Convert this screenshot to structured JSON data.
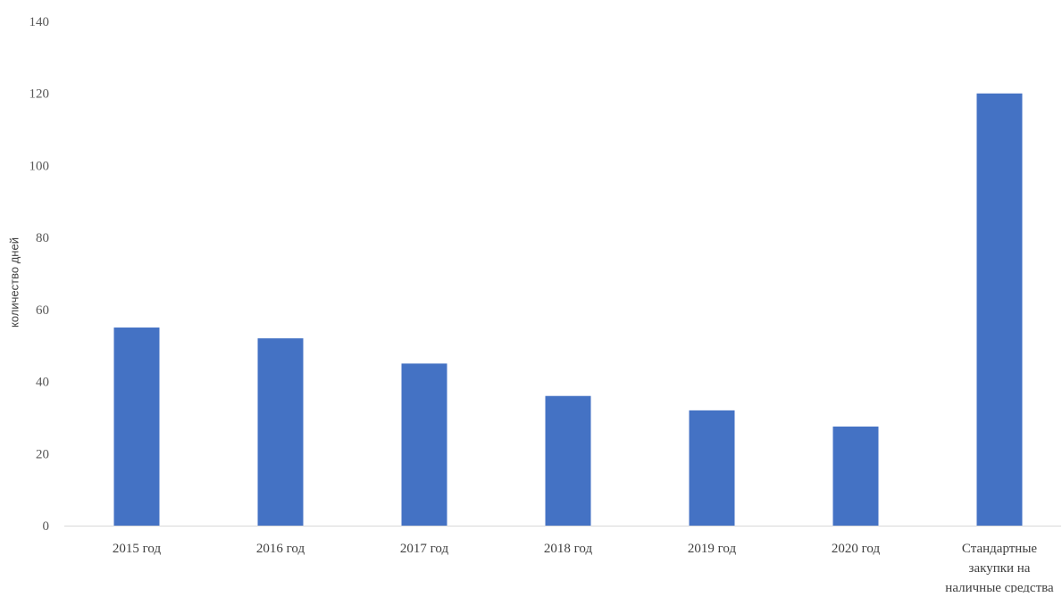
{
  "chart_data": {
    "type": "bar",
    "title": "",
    "xlabel": "",
    "ylabel": "количество дней",
    "ylim": [
      0,
      140
    ],
    "yticks": [
      0,
      20,
      40,
      60,
      80,
      100,
      120,
      140
    ],
    "grid": false,
    "legend": "none",
    "categories": [
      [
        "2015 год"
      ],
      [
        "2016 год"
      ],
      [
        "2017 год"
      ],
      [
        "2018 год"
      ],
      [
        "2019 год"
      ],
      [
        "2020 год"
      ],
      [
        "Стандартные",
        "закупки на",
        "наличные средства"
      ]
    ],
    "values": [
      55,
      52,
      45,
      36,
      32,
      27.5,
      120
    ],
    "colors": {
      "bar": "#4472C4",
      "axis": "#D9D9D9"
    }
  }
}
